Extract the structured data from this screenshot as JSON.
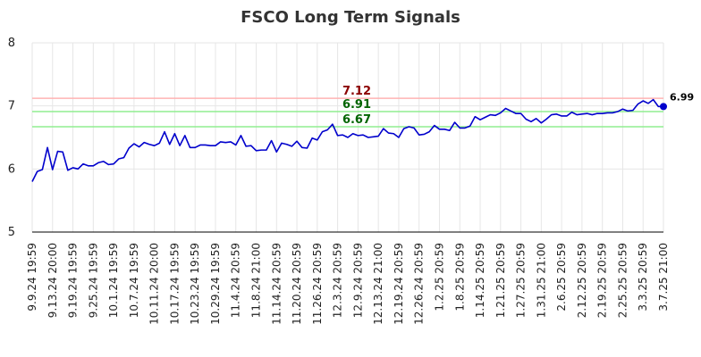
{
  "chart_data": {
    "type": "line",
    "title": "FSCO Long Term Signals",
    "xlabel": "",
    "ylabel": "",
    "ylim": [
      5,
      8
    ],
    "yticks": [
      "5",
      "6",
      "7",
      "8"
    ],
    "grid": true,
    "x_tick_labels": [
      "9.9.24 19:59",
      "9.13.24 20:00",
      "9.19.24 19:59",
      "9.25.24 19:59",
      "10.1.24 19:59",
      "10.7.24 19:59",
      "10.11.24 20:00",
      "10.17.24 19:59",
      "10.23.24 19:59",
      "10.29.24 19:59",
      "11.4.24 20:59",
      "11.8.24 21:00",
      "11.14.24 20:59",
      "11.20.24 20:59",
      "11.26.24 20:59",
      "12.3.24 20:59",
      "12.9.24 20:59",
      "12.13.24 21:00",
      "12.19.24 20:59",
      "12.26.24 20:59",
      "1.2.25 20:59",
      "1.8.25 20:59",
      "1.14.25 20:59",
      "1.21.25 20:59",
      "1.27.25 20:59",
      "1.31.25 21:00",
      "2.6.25 20:59",
      "2.12.25 20:59",
      "2.19.25 20:59",
      "2.25.25 20:59",
      "3.3.25 20:59",
      "3.7.25 21:00"
    ],
    "horizontal_lines": [
      {
        "value": 7.12,
        "label": "7.12",
        "line_color": "#ffb3b3",
        "label_color": "#8b0000"
      },
      {
        "value": 6.91,
        "label": "6.91",
        "line_color": "#90ee90",
        "label_color": "#006400"
      },
      {
        "value": 6.67,
        "label": "6.67",
        "line_color": "#90ee90",
        "label_color": "#006400"
      }
    ],
    "series_color": "#0000cc",
    "last_value_label": "6.99",
    "series": [
      {
        "values": [
          5.8,
          5.96,
          5.99,
          6.34,
          5.99,
          6.28,
          6.27,
          5.98,
          6.02,
          6.0,
          6.08,
          6.05,
          6.05,
          6.1,
          6.12,
          6.07,
          6.08,
          6.16,
          6.18,
          6.33,
          6.4,
          6.35,
          6.42,
          6.39,
          6.37,
          6.41,
          6.59,
          6.39,
          6.56,
          6.37,
          6.53,
          6.34,
          6.34,
          6.38,
          6.38,
          6.37,
          6.37,
          6.43,
          6.42,
          6.43,
          6.38,
          6.53,
          6.36,
          6.37,
          6.29,
          6.3,
          6.3,
          6.45,
          6.27,
          6.41,
          6.39,
          6.36,
          6.44,
          6.34,
          6.33,
          6.49,
          6.46,
          6.59,
          6.62,
          6.71,
          6.53,
          6.54,
          6.5,
          6.56,
          6.53,
          6.54,
          6.5,
          6.51,
          6.52,
          6.64,
          6.57,
          6.56,
          6.5,
          6.64,
          6.67,
          6.65,
          6.54,
          6.55,
          6.59,
          6.69,
          6.63,
          6.63,
          6.61,
          6.74,
          6.65,
          6.65,
          6.68,
          6.83,
          6.78,
          6.82,
          6.86,
          6.85,
          6.89,
          6.96,
          6.92,
          6.88,
          6.88,
          6.79,
          6.75,
          6.8,
          6.73,
          6.79,
          6.86,
          6.87,
          6.84,
          6.84,
          6.9,
          6.86,
          6.87,
          6.88,
          6.86,
          6.88,
          6.88,
          6.89,
          6.89,
          6.91,
          6.95,
          6.92,
          6.93,
          7.03,
          7.08,
          7.04,
          7.1,
          6.99,
          6.99
        ]
      }
    ]
  }
}
